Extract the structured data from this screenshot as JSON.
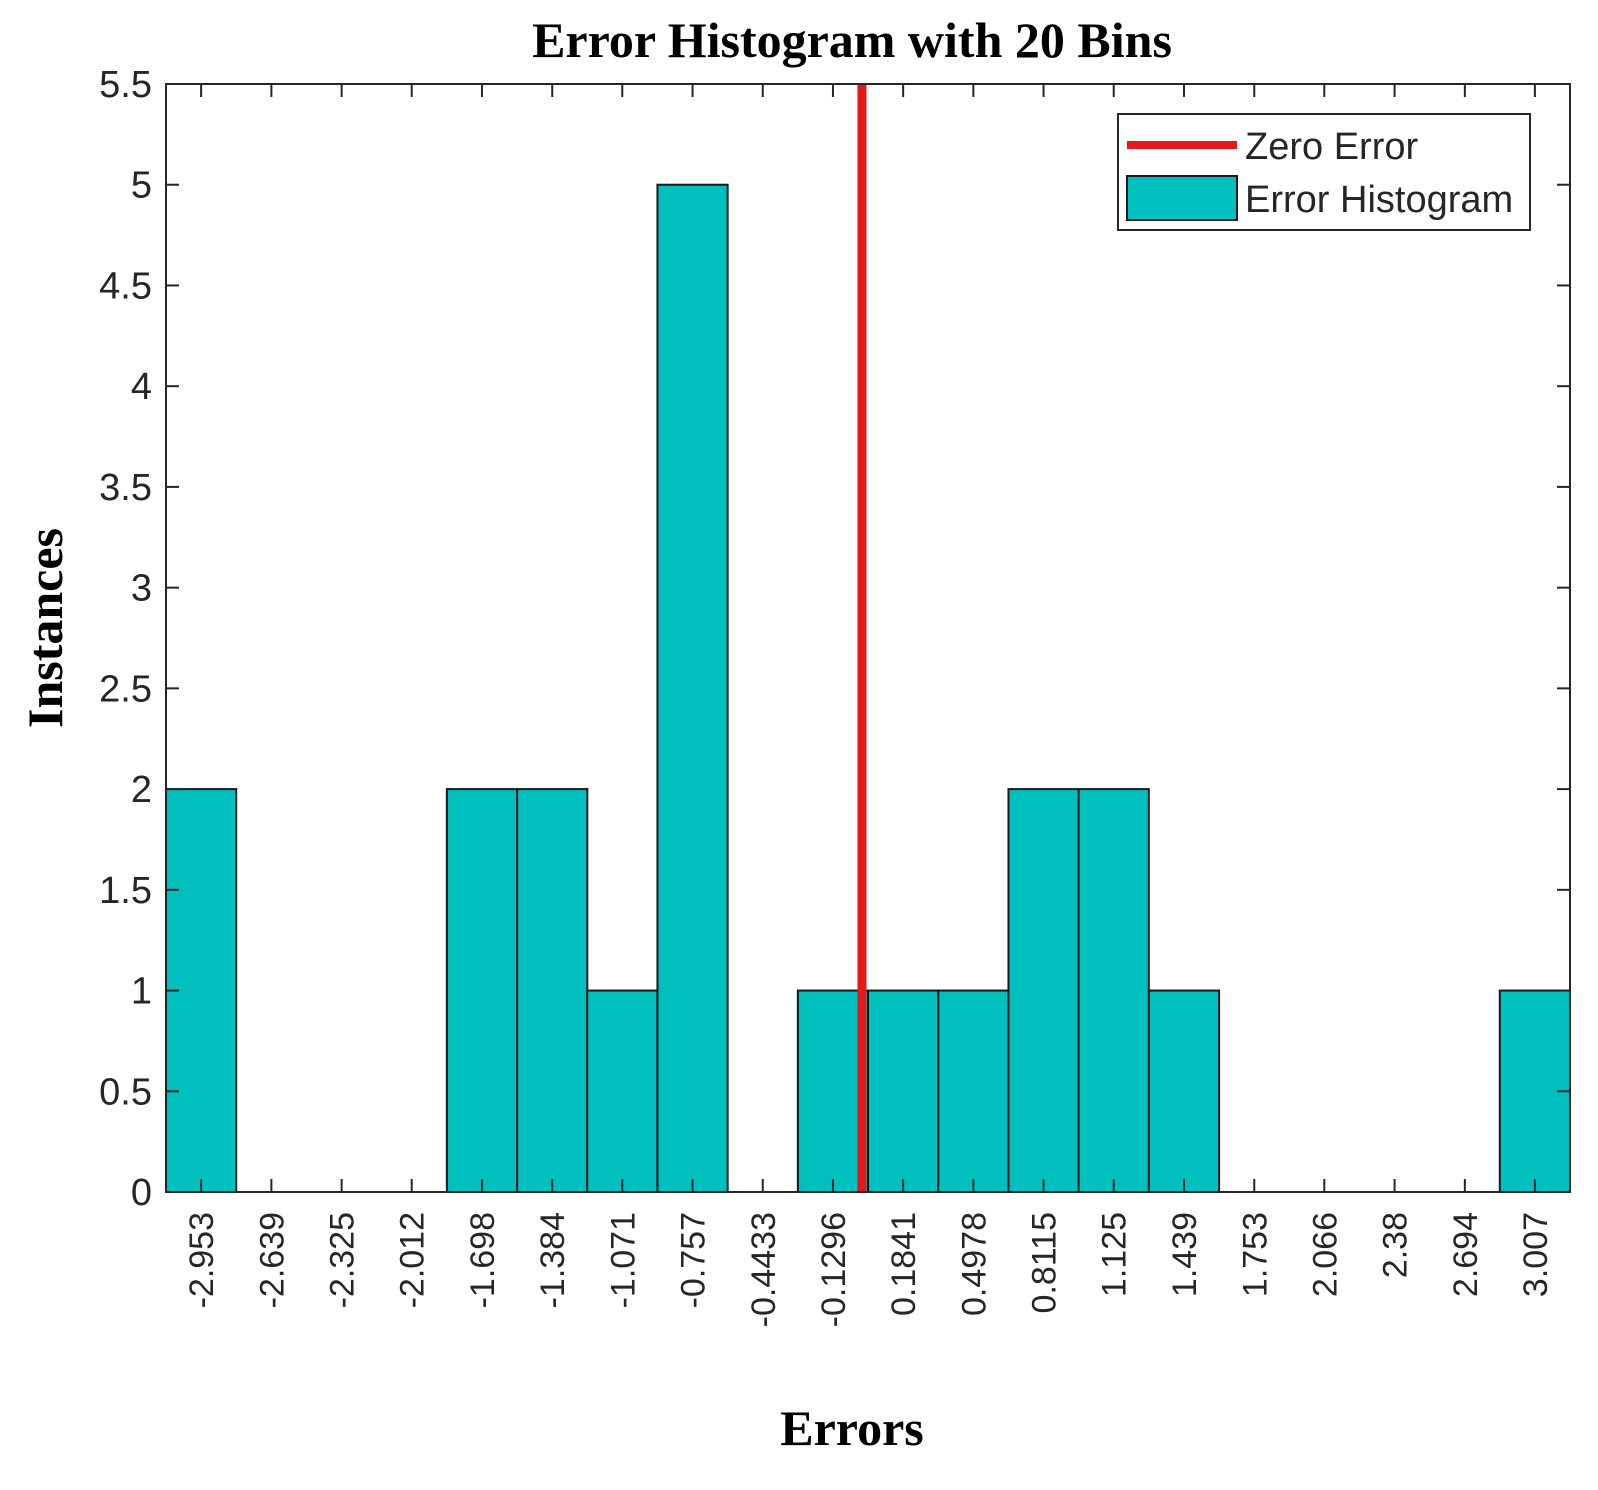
{
  "chart_data": {
    "type": "bar",
    "title": "Error Histogram with 20 Bins",
    "xlabel": "Errors",
    "ylabel": "Instances",
    "categories": [
      "-2.953",
      "-2.639",
      "-2.325",
      "-2.012",
      "-1.698",
      "-1.384",
      "-1.071",
      "-0.757",
      "-0.4433",
      "-0.1296",
      "0.1841",
      "0.4978",
      "0.8115",
      "1.125",
      "1.439",
      "1.753",
      "2.066",
      "2.38",
      "2.694",
      "3.007"
    ],
    "series": [
      {
        "name": "Error Histogram",
        "values": [
          2,
          0,
          0,
          0,
          2,
          2,
          1,
          5,
          0,
          1,
          1,
          1,
          2,
          2,
          1,
          0,
          0,
          0,
          0,
          1
        ]
      }
    ],
    "zero_error": {
      "name": "Zero Error",
      "x": 0
    },
    "yticks": [
      "0",
      "0.5",
      "1",
      "1.5",
      "2",
      "2.5",
      "3",
      "3.5",
      "4",
      "4.5",
      "5",
      "5.5"
    ],
    "ylim": [
      0,
      5.5
    ],
    "xlim": [
      -3.1099,
      3.1639
    ],
    "grid": false,
    "legend_position": "top-right",
    "colors": {
      "bar": "#00BFBF",
      "zero_line": "#E3191C",
      "axis": "#262626"
    }
  }
}
